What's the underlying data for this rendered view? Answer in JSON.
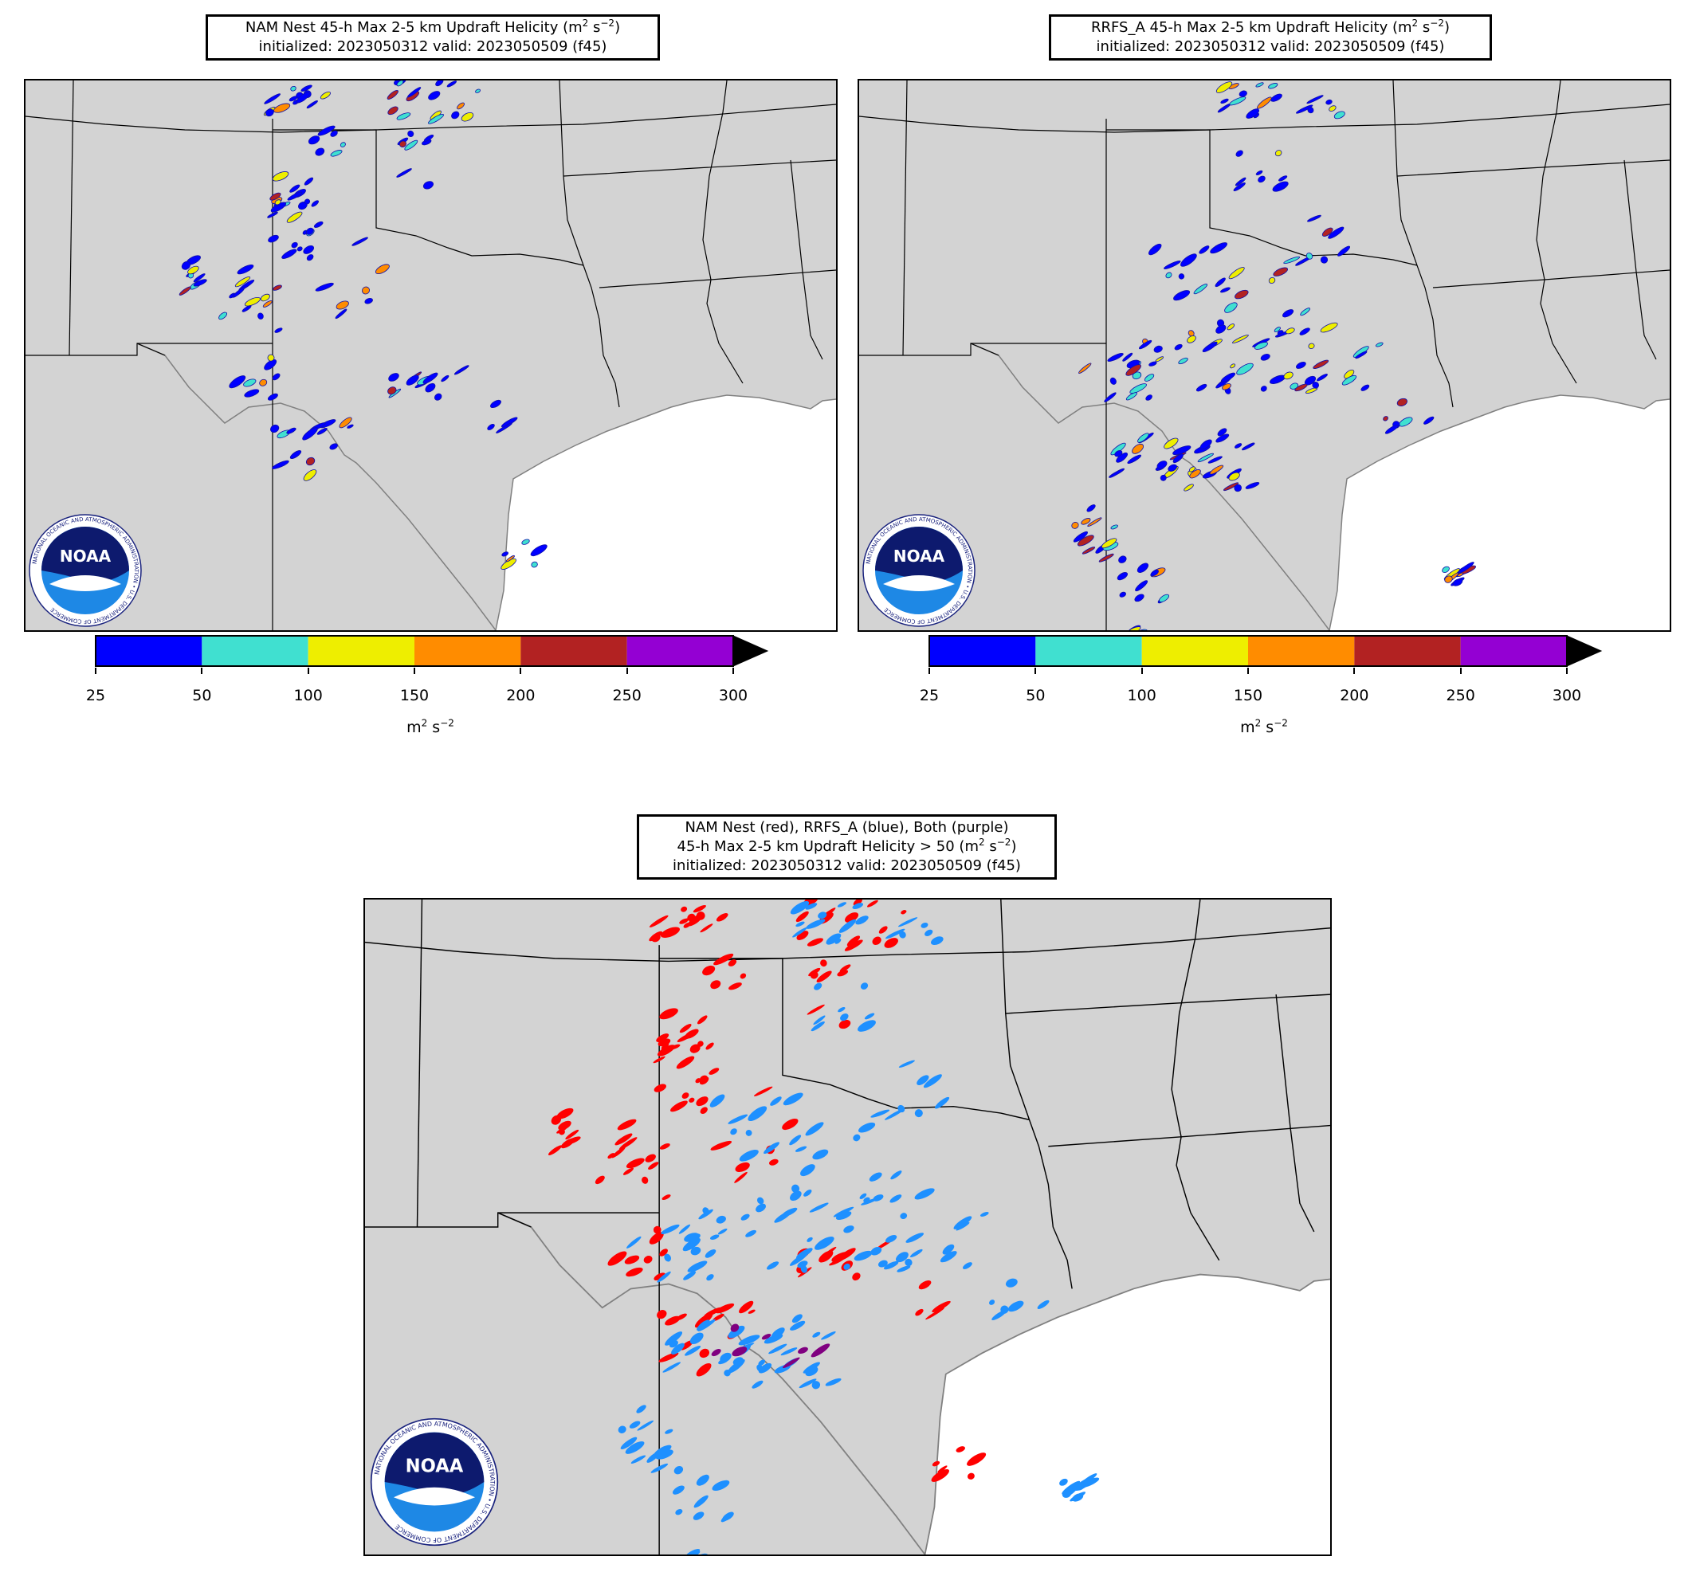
{
  "panels": [
    {
      "id": "nam",
      "title_line1_prefix": "NAM Nest 45-h Max 2-5 km Updraft Helicity (m",
      "title_line1_sup1": "2",
      "title_line1_mid": " s",
      "title_line1_sup2": "−2",
      "title_line1_suffix": ")",
      "title_line2": "initialized: 2023050312 valid: 2023050509 (f45)"
    },
    {
      "id": "rrfs",
      "title_line1_prefix": "RRFS_A 45-h Max 2-5 km Updraft Helicity (m",
      "title_line1_sup1": "2",
      "title_line1_mid": " s",
      "title_line1_sup2": "−2",
      "title_line1_suffix": ")",
      "title_line2": "initialized: 2023050312 valid: 2023050509 (f45)"
    },
    {
      "id": "compare",
      "title_line1": "NAM Nest (red), RRFS_A (blue), Both (purple)",
      "title_line2_prefix": "45-h Max 2-5 km Updraft Helicity > 50 (m",
      "title_line2_sup1": "2",
      "title_line2_mid": " s",
      "title_line2_sup2": "−2",
      "title_line2_suffix": ")",
      "title_line3": "initialized: 2023050312 valid: 2023050509 (f45)"
    }
  ],
  "colorbar": {
    "ticks": [
      "25",
      "50",
      "100",
      "150",
      "200",
      "250",
      "300"
    ],
    "colors": [
      "#0000ff",
      "#40e0d0",
      "#eeee00",
      "#ff8c00",
      "#b22222",
      "#9400d3"
    ],
    "extend_color": "#000000",
    "units_base": "m",
    "units_sup1": "2",
    "units_mid": " s",
    "units_sup2": "−2"
  },
  "legend_colors": {
    "nam": "#ff0000",
    "rrfs": "#1e90ff",
    "both": "#800080"
  },
  "map_colors": {
    "land": "#d3d3d3",
    "water": "#ffffff",
    "border": "#000000",
    "coast": "#808080"
  },
  "logo": {
    "text": "NOAA",
    "ring_text": "NATIONAL OCEANIC AND ATMOSPHERIC ADMINISTRATION",
    "ring_text_bottom": "U.S. DEPARTMENT OF COMMERCE"
  }
}
